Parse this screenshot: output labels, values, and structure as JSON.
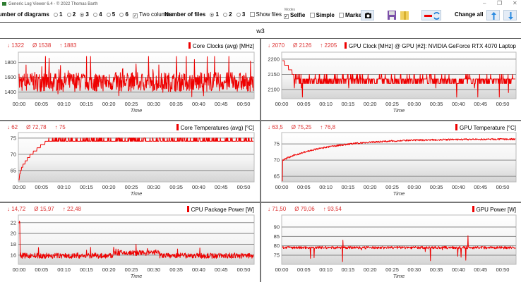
{
  "window": {
    "title": "Generic Log Viewer 6.4 - © 2022 Thomas Barth",
    "controls": [
      "–",
      "❐",
      "✕"
    ]
  },
  "toolbar": {
    "diagrams_label": "Number of diagrams",
    "diagram_options": [
      "1",
      "2",
      "3",
      "4",
      "5",
      "6"
    ],
    "diagrams_selected": "3",
    "two_columns_label": "Two columns",
    "two_columns_checked": true,
    "files_label": "Number of files",
    "file_options": [
      "1",
      "2",
      "3"
    ],
    "files_selected": "1",
    "show_files_label": "Show files",
    "show_files_checked": false,
    "modes_label": "Modes",
    "selfie_label": "Selfie",
    "selfie_checked": true,
    "simple_label": "Simple",
    "marker_label": "Marker",
    "change_all_label": "Change all"
  },
  "workspace_title": "w3",
  "accent_color": "#ee0000",
  "chart_data": [
    {
      "type": "line",
      "legend": "Core Clocks (avg) [MHz]",
      "min": "1322",
      "avg": "1538",
      "max": "1883",
      "min_v": 1322,
      "avg_v": 1538,
      "max_v": 1883,
      "yticks": [
        1400,
        1600,
        1800
      ],
      "ylim": [
        1310,
        1940
      ],
      "xlabel": "Time",
      "xticks": [
        "00:00",
        "00:05",
        "00:10",
        "00:15",
        "00:20",
        "00:25",
        "00:30",
        "00:35",
        "00:40",
        "00:45",
        "00:50"
      ],
      "xlim_min": [
        0,
        53
      ],
      "shape": "noisy"
    },
    {
      "type": "line",
      "legend": "GPU Clock [MHz] @ GPU [#2]: NVIDIA GeForce RTX 4070 Laptop",
      "min": "2070",
      "avg": "2126",
      "max": "2205",
      "min_v": 2070,
      "avg_v": 2126,
      "max_v": 2205,
      "yticks": [
        2100,
        2150,
        2200
      ],
      "ylim": [
        2070,
        2223
      ],
      "xlabel": "Time",
      "xticks": [
        "00:00",
        "00:05",
        "00:10",
        "00:15",
        "00:20",
        "00:25",
        "00:30",
        "00:35",
        "00:40",
        "00:45",
        "00:50"
      ],
      "xlim_min": [
        0,
        53
      ],
      "shape": "gpuclock"
    },
    {
      "type": "line",
      "legend": "Core Temperatures (avg) [°C]",
      "min": "62",
      "avg": "72,78",
      "max": "75",
      "min_v": 62,
      "avg_v": 72.78,
      "max_v": 75,
      "yticks": [
        65,
        70,
        75
      ],
      "ylim": [
        61.5,
        76.7
      ],
      "xlabel": "Time",
      "xticks": [
        "00:00",
        "00:05",
        "00:10",
        "00:15",
        "00:20",
        "00:25",
        "00:30",
        "00:35",
        "00:40",
        "00:45",
        "00:50"
      ],
      "xlim_min": [
        0,
        53
      ],
      "shape": "cputemp"
    },
    {
      "type": "line",
      "legend": "GPU Temperature [°C]",
      "min": "63,5",
      "avg": "75,25",
      "max": "76,8",
      "min_v": 63.5,
      "avg_v": 75.25,
      "max_v": 76.8,
      "yticks": [
        65,
        70,
        75
      ],
      "ylim": [
        63.3,
        78.5
      ],
      "xlabel": "Time",
      "xticks": [
        "00:00",
        "00:05",
        "00:10",
        "00:15",
        "00:20",
        "00:25",
        "00:30",
        "00:35",
        "00:40",
        "00:45",
        "00:50"
      ],
      "xlim_min": [
        0,
        53
      ],
      "shape": "gputemp"
    },
    {
      "type": "line",
      "legend": "CPU Package Power [W]",
      "min": "14,72",
      "avg": "15,97",
      "max": "22,48",
      "min_v": 14.72,
      "avg_v": 15.97,
      "max_v": 22.48,
      "yticks": [
        16,
        18,
        20,
        22
      ],
      "ylim": [
        14.3,
        23.4
      ],
      "xlabel": "Time",
      "xticks": [
        "00:00",
        "00:05",
        "00:10",
        "00:15",
        "00:20",
        "00:25",
        "00:30",
        "00:35",
        "00:40",
        "00:45",
        "00:50"
      ],
      "xlim_min": [
        0,
        53
      ],
      "shape": "cpupower"
    },
    {
      "type": "line",
      "legend": "GPU Power [W]",
      "min": "71,50",
      "avg": "79,06",
      "max": "93,54",
      "min_v": 71.5,
      "avg_v": 79.06,
      "max_v": 93.54,
      "yticks": [
        75,
        80,
        85,
        90
      ],
      "ylim": [
        70.1,
        96.4
      ],
      "xlabel": "Time",
      "xticks": [
        "00:00",
        "00:05",
        "00:10",
        "00:15",
        "00:20",
        "00:25",
        "00:30",
        "00:35",
        "00:40",
        "00:45",
        "00:50"
      ],
      "xlim_min": [
        0,
        53
      ],
      "shape": "gpupower"
    }
  ]
}
